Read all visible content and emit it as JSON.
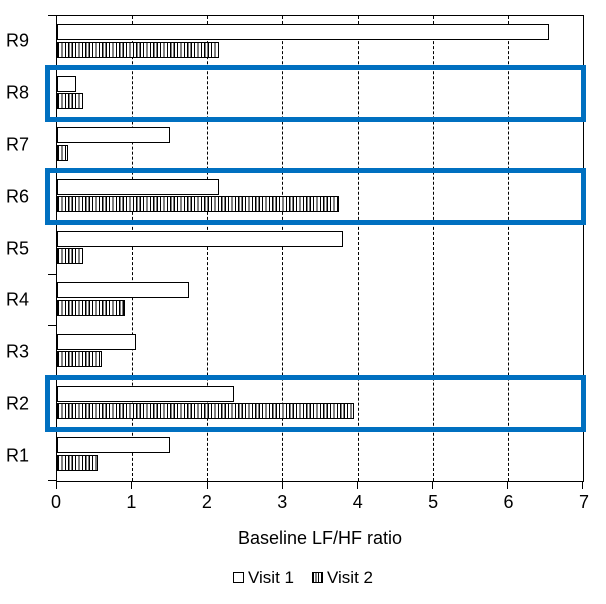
{
  "chart_data": {
    "type": "bar",
    "orientation": "horizontal",
    "title": "",
    "xlabel": "Baseline LF/HF ratio",
    "ylabel": "",
    "xlim": [
      0,
      7
    ],
    "xticks": [
      0,
      1,
      2,
      3,
      4,
      5,
      6,
      7
    ],
    "grid": "vertical dashed gridlines at integer ticks 1-6",
    "categories": [
      "R1",
      "R2",
      "R3",
      "R4",
      "R5",
      "R6",
      "R7",
      "R8",
      "R9"
    ],
    "category_display_order_top_to_bottom": [
      "R9",
      "R8",
      "R7",
      "R6",
      "R5",
      "R4",
      "R3",
      "R2",
      "R1"
    ],
    "series": [
      {
        "name": "Visit 1",
        "style": "white-fill-black-outline",
        "values": [
          1.5,
          2.35,
          1.05,
          1.75,
          3.8,
          2.15,
          1.5,
          0.25,
          6.55
        ]
      },
      {
        "name": "Visit 2",
        "style": "vertical-hatch-black-outline",
        "values": [
          0.55,
          3.95,
          0.6,
          0.9,
          0.35,
          3.75,
          0.15,
          0.35,
          2.15
        ]
      }
    ],
    "highlighted_categories": [
      "R2",
      "R6",
      "R8"
    ],
    "highlight_color": "#0070C0",
    "legend_position": "bottom-center"
  },
  "axis": {
    "xlabel": "Baseline LF/HF ratio"
  },
  "legend": {
    "items": [
      {
        "label": "Visit 1",
        "swatch": "white-square"
      },
      {
        "label": "Visit 2",
        "swatch": "hatched-square"
      }
    ]
  },
  "colors": {
    "highlight_blue": "#0070C0",
    "axis_black": "#000000",
    "background": "#ffffff"
  }
}
